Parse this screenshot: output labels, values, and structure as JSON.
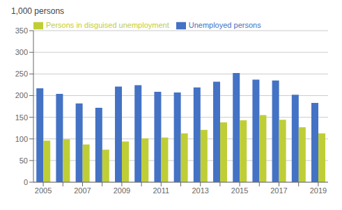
{
  "chart_data": {
    "type": "bar",
    "ylabel": "1,000 persons",
    "categories": [
      "2005",
      null,
      "2007",
      null,
      "2009",
      null,
      "2011",
      null,
      "2013",
      null,
      "2015",
      null,
      "2017",
      null,
      "2019"
    ],
    "series": [
      {
        "name": "Unemployed persons",
        "color": "#4472C4",
        "values": [
          217,
          204,
          182,
          172,
          221,
          224,
          209,
          207,
          219,
          232,
          252,
          237,
          235,
          202,
          183
        ]
      },
      {
        "name": "Persons in disguised unemployment",
        "color": "#BFCE37",
        "values": [
          96,
          99,
          87,
          75,
          94,
          101,
          103,
          113,
          121,
          138,
          143,
          155,
          144,
          127,
          113
        ]
      }
    ],
    "ylim": [
      0,
      350
    ],
    "yticks": [
      0,
      50,
      100,
      150,
      200,
      250,
      300,
      350
    ],
    "grid": true,
    "legend": "upper left"
  }
}
